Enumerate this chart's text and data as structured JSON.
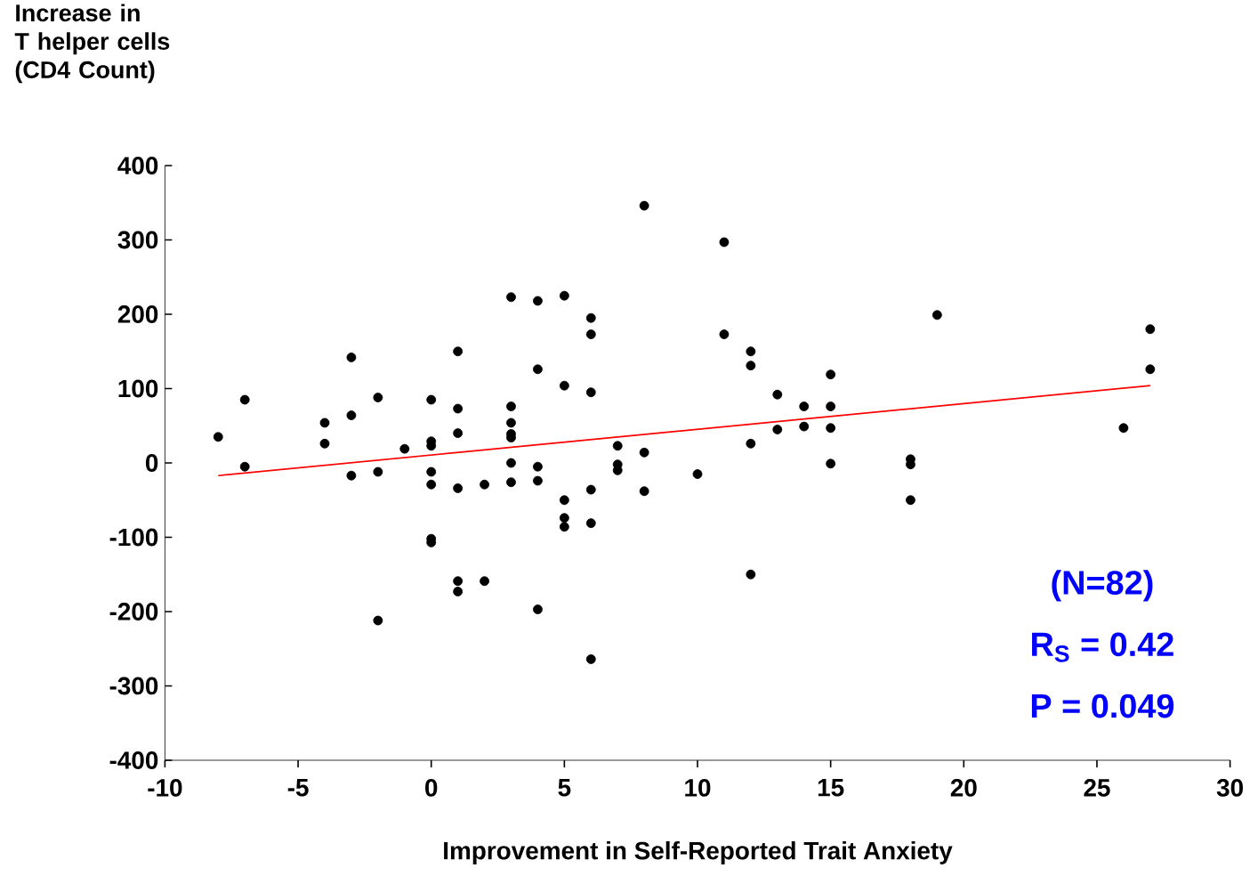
{
  "chart_data": {
    "type": "scatter",
    "xlabel": "Improvement in Self-Reported Trait Anxiety",
    "ylabel": "Increase in T helper cells (CD4 Count)",
    "xlim": [
      -10,
      30
    ],
    "ylim": [
      -400,
      400
    ],
    "xticks": [
      -10,
      -5,
      0,
      5,
      10,
      15,
      20,
      25,
      30
    ],
    "yticks": [
      -400,
      -300,
      -200,
      -100,
      0,
      100,
      200,
      300,
      400
    ],
    "grid": false,
    "marker": "circle",
    "series": [
      {
        "color": "#000000",
        "x": [
          -8,
          -7,
          -7,
          -4,
          -4,
          -3,
          -3,
          -3,
          -2,
          -2,
          -2,
          -1,
          0,
          0,
          0,
          0,
          0,
          0,
          0,
          1,
          1,
          1,
          1,
          1,
          1,
          2,
          2,
          3,
          3,
          3,
          3,
          3,
          3,
          3,
          4,
          4,
          4,
          4,
          4,
          5,
          5,
          5,
          5,
          5,
          6,
          6,
          6,
          6,
          6,
          6,
          7,
          7,
          7,
          8,
          8,
          8,
          10,
          11,
          11,
          12,
          12,
          12,
          12,
          13,
          13,
          14,
          14,
          15,
          15,
          15,
          15,
          19,
          18,
          18,
          18,
          27,
          27,
          26
        ],
        "values": [
          35,
          85,
          -5,
          54,
          26,
          142,
          64,
          -17,
          88,
          -12,
          -212,
          19,
          85,
          29,
          23,
          -12,
          -29,
          -102,
          -107,
          150,
          73,
          40,
          -34,
          -159,
          -173,
          -29,
          -159,
          223,
          76,
          54,
          39,
          34,
          0,
          -26,
          218,
          126,
          -5,
          -24,
          -197,
          225,
          104,
          -50,
          -74,
          -86,
          195,
          173,
          95,
          -36,
          -81,
          -264,
          23,
          -2,
          -10,
          346,
          14,
          -38,
          -15,
          297,
          173,
          150,
          131,
          26,
          -150,
          92,
          45,
          76,
          49,
          119,
          76,
          47,
          -1,
          199,
          5,
          -2,
          -50,
          180,
          126,
          47
        ]
      },
      {
        "type": "line",
        "color": "#ff0000",
        "x": [
          -8,
          27
        ],
        "values": [
          -17,
          104
        ],
        "marker": "none"
      }
    ],
    "annotations": [
      "(N=82)",
      "R$_{S}$ = 0.42",
      "P = 0.049"
    ]
  }
}
